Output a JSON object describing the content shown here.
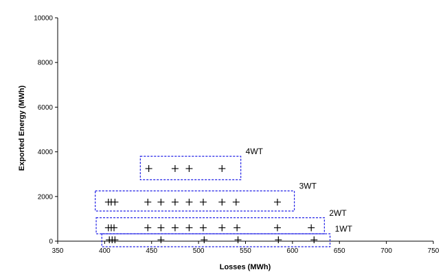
{
  "chart_data": {
    "type": "scatter",
    "title": "",
    "xlabel": "Losses (MWh)",
    "ylabel": "Exported Energy (MWh)",
    "xlim": [
      350,
      750
    ],
    "ylim": [
      0,
      10000
    ],
    "x_ticks": [
      350,
      400,
      450,
      500,
      550,
      600,
      650,
      700,
      750
    ],
    "y_ticks": [
      0,
      2000,
      4000,
      6000,
      8000,
      10000
    ],
    "grid": false,
    "marker": "+",
    "marker_color": "#000000",
    "group_box_color": "#1c1ce6",
    "groups": [
      {
        "label": "1WT",
        "box": {
          "x": [
            397,
            640
          ],
          "y": [
            -250,
            330
          ]
        },
        "points": [
          {
            "x": 405,
            "y": 60
          },
          {
            "x": 408,
            "y": 60
          },
          {
            "x": 411,
            "y": 60
          },
          {
            "x": 460,
            "y": 60
          },
          {
            "x": 506,
            "y": 60
          },
          {
            "x": 542,
            "y": 60
          },
          {
            "x": 585,
            "y": 60
          },
          {
            "x": 623,
            "y": 60
          }
        ]
      },
      {
        "label": "2WT",
        "box": {
          "x": [
            391,
            634
          ],
          "y": [
            330,
            1050
          ]
        },
        "points": [
          {
            "x": 404,
            "y": 600
          },
          {
            "x": 407,
            "y": 600
          },
          {
            "x": 410,
            "y": 600
          },
          {
            "x": 446,
            "y": 600
          },
          {
            "x": 460,
            "y": 600
          },
          {
            "x": 475,
            "y": 600
          },
          {
            "x": 490,
            "y": 600
          },
          {
            "x": 505,
            "y": 600
          },
          {
            "x": 525,
            "y": 600
          },
          {
            "x": 541,
            "y": 600
          },
          {
            "x": 584,
            "y": 600
          },
          {
            "x": 620,
            "y": 600
          }
        ]
      },
      {
        "label": "3WT",
        "box": {
          "x": [
            390,
            602
          ],
          "y": [
            1350,
            2250
          ]
        },
        "points": [
          {
            "x": 404,
            "y": 1750
          },
          {
            "x": 407,
            "y": 1750
          },
          {
            "x": 411,
            "y": 1750
          },
          {
            "x": 446,
            "y": 1750
          },
          {
            "x": 460,
            "y": 1750
          },
          {
            "x": 475,
            "y": 1750
          },
          {
            "x": 490,
            "y": 1750
          },
          {
            "x": 505,
            "y": 1750
          },
          {
            "x": 525,
            "y": 1750
          },
          {
            "x": 540,
            "y": 1750
          },
          {
            "x": 584,
            "y": 1750
          }
        ]
      },
      {
        "label": "4WT",
        "box": {
          "x": [
            438,
            545
          ],
          "y": [
            2750,
            3800
          ]
        },
        "points": [
          {
            "x": 447,
            "y": 3250
          },
          {
            "x": 475,
            "y": 3250
          },
          {
            "x": 490,
            "y": 3250
          },
          {
            "x": 525,
            "y": 3250
          }
        ]
      }
    ]
  }
}
